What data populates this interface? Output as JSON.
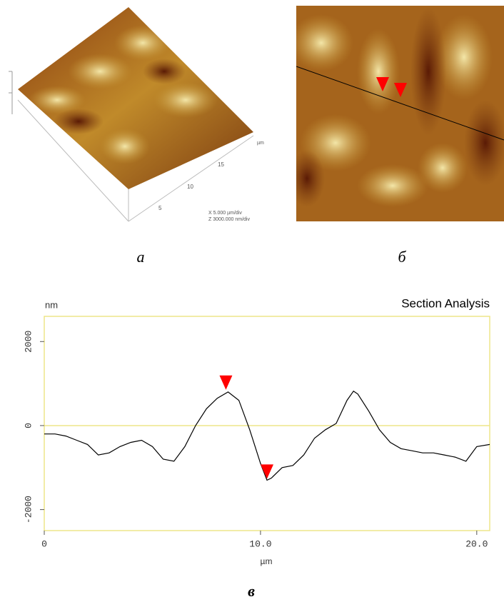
{
  "image_a": {
    "tick_labels": [
      "5",
      "10",
      "15"
    ],
    "unit": "µm",
    "scale_x": "X 5.000 µm/div",
    "scale_z": "Z 3000.000 nm/div"
  },
  "panel_labels": [
    "а",
    "б",
    "в"
  ],
  "chart_data": {
    "type": "line",
    "title": "Section Analysis",
    "y_unit": "nm",
    "x_label": "µm",
    "x": [
      0,
      0.5,
      1.0,
      1.5,
      2.0,
      2.5,
      3.0,
      3.5,
      4.0,
      4.5,
      5.0,
      5.5,
      6.0,
      6.5,
      7.0,
      7.5,
      8.0,
      8.5,
      9.0,
      9.5,
      10.0,
      10.3,
      10.5,
      11.0,
      11.5,
      12.0,
      12.5,
      13.0,
      13.5,
      14.0,
      14.3,
      14.5,
      15.0,
      15.5,
      16.0,
      16.5,
      17.0,
      17.5,
      18.0,
      18.5,
      19.0,
      19.5,
      20.0,
      20.6
    ],
    "values": [
      -200,
      -200,
      -250,
      -350,
      -450,
      -700,
      -650,
      -500,
      -400,
      -350,
      -500,
      -800,
      -850,
      -500,
      0,
      400,
      650,
      800,
      600,
      -100,
      -900,
      -1300,
      -1250,
      -1000,
      -950,
      -700,
      -300,
      -100,
      50,
      600,
      820,
      750,
      350,
      -100,
      -400,
      -550,
      -600,
      -650,
      -650,
      -700,
      -750,
      -850,
      -500,
      -450
    ],
    "color": "#000000",
    "markers": [
      {
        "x": 8.4,
        "y": 820
      },
      {
        "x": 10.3,
        "y": -1300
      }
    ],
    "marker_color": "#ff0000",
    "xlim": [
      0,
      20.6
    ],
    "ylim": [
      -2500,
      2600
    ],
    "xticks": [
      0,
      {
        "value": 10,
        "label": "10.0"
      },
      {
        "value": 20,
        "label": "20.0"
      }
    ],
    "yticks": [
      -2000,
      0,
      2000
    ],
    "zero_line": true,
    "frame_color": "#eee58a"
  }
}
